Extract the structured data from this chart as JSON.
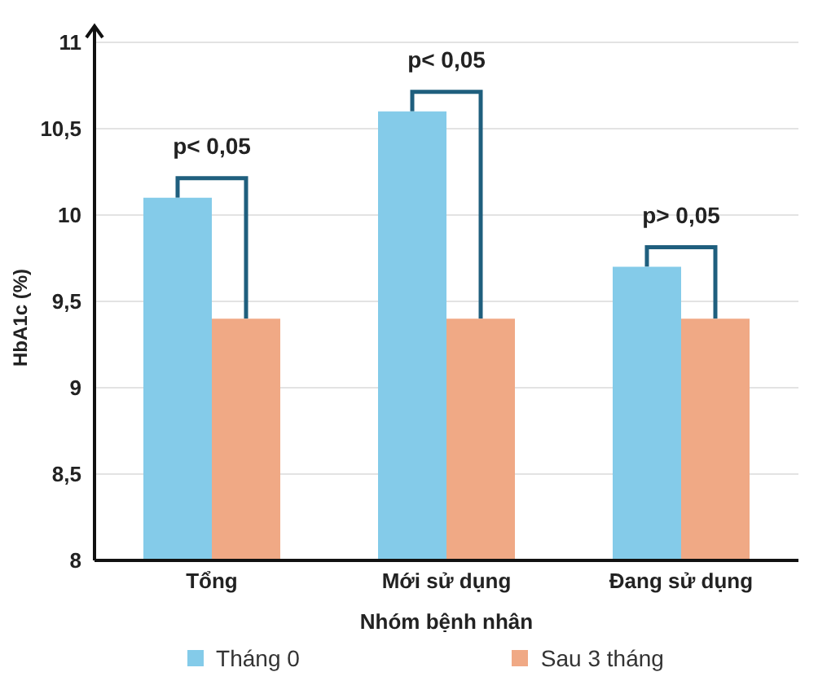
{
  "chart_data": {
    "type": "bar",
    "xlabel": "Nhóm bệnh nhân",
    "ylabel": "HbA1c (%)",
    "categories": [
      "Tổng",
      "Mới sử dụng",
      "Đang sử dụng"
    ],
    "series": [
      {
        "name": "Tháng 0",
        "color": "#84cbe9",
        "values": [
          10.1,
          10.6,
          9.7
        ]
      },
      {
        "name": "Sau 3 tháng",
        "color": "#f0a985",
        "values": [
          9.4,
          9.4,
          9.4
        ]
      }
    ],
    "ylim": [
      8,
      11
    ],
    "yticks": [
      8,
      {
        "value": 8.5,
        "label": "8,5"
      },
      9,
      {
        "value": 9.5,
        "label": "9,5"
      },
      10,
      {
        "value": 10.5,
        "label": "10,5"
      },
      11
    ],
    "grid": "y",
    "legend": "bottom",
    "annotations": [
      "p< 0,05",
      "p< 0,05",
      "p> 0,05"
    ]
  }
}
